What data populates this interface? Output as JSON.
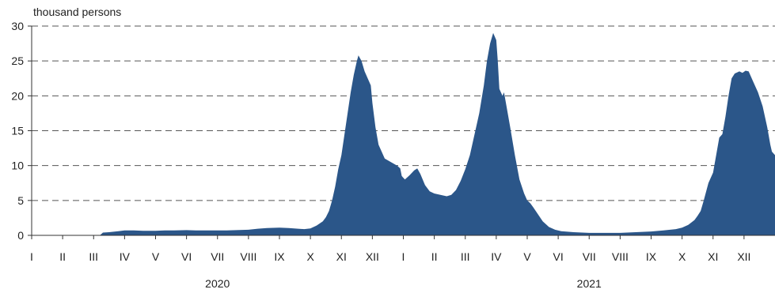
{
  "chart_data": {
    "type": "area",
    "unit_label": "thousand persons",
    "yticks": [
      0,
      5,
      10,
      15,
      20,
      25,
      30
    ],
    "ylim": [
      0,
      30
    ],
    "grid": "horizontal dashed",
    "color": "#2b5689",
    "month_labels": [
      "I",
      "II",
      "III",
      "IV",
      "V",
      "VI",
      "VII",
      "VIII",
      "IX",
      "X",
      "XI",
      "XII",
      "I",
      "II",
      "III",
      "IV",
      "V",
      "VI",
      "VII",
      "VIII",
      "IX",
      "X",
      "XI",
      "XII"
    ],
    "year_labels": [
      "2020",
      "2021"
    ],
    "x_unit": "month index (0 = start of Jan 2020)",
    "series": [
      {
        "values": [
          [
            2.2,
            0
          ],
          [
            2.3,
            0.4
          ],
          [
            2.5,
            0.45
          ],
          [
            2.8,
            0.6
          ],
          [
            3.0,
            0.7
          ],
          [
            3.3,
            0.7
          ],
          [
            3.6,
            0.65
          ],
          [
            4.0,
            0.65
          ],
          [
            4.3,
            0.7
          ],
          [
            4.6,
            0.7
          ],
          [
            5.0,
            0.75
          ],
          [
            5.3,
            0.7
          ],
          [
            5.6,
            0.7
          ],
          [
            6.0,
            0.7
          ],
          [
            6.3,
            0.7
          ],
          [
            6.6,
            0.75
          ],
          [
            7.0,
            0.8
          ],
          [
            7.3,
            0.95
          ],
          [
            7.6,
            1.05
          ],
          [
            8.0,
            1.1
          ],
          [
            8.3,
            1.05
          ],
          [
            8.6,
            0.95
          ],
          [
            8.8,
            0.9
          ],
          [
            9.0,
            1.0
          ],
          [
            9.2,
            1.4
          ],
          [
            9.4,
            2.0
          ],
          [
            9.5,
            2.6
          ],
          [
            9.6,
            3.5
          ],
          [
            9.7,
            5.0
          ],
          [
            9.8,
            7.0
          ],
          [
            9.9,
            9.5
          ],
          [
            10.0,
            11.5
          ],
          [
            10.1,
            14.5
          ],
          [
            10.2,
            17.5
          ],
          [
            10.3,
            20.5
          ],
          [
            10.4,
            23.0
          ],
          [
            10.5,
            25.0
          ],
          [
            10.55,
            25.8
          ],
          [
            10.65,
            25.0
          ],
          [
            10.75,
            23.5
          ],
          [
            10.85,
            22.5
          ],
          [
            10.95,
            21.5
          ],
          [
            11.0,
            19.0
          ],
          [
            11.1,
            15.5
          ],
          [
            11.2,
            13.0
          ],
          [
            11.3,
            12.0
          ],
          [
            11.4,
            11.0
          ],
          [
            11.6,
            10.5
          ],
          [
            11.8,
            10.0
          ],
          [
            11.9,
            9.6
          ],
          [
            11.95,
            8.5
          ],
          [
            12.05,
            8.0
          ],
          [
            12.2,
            8.6
          ],
          [
            12.35,
            9.3
          ],
          [
            12.45,
            9.6
          ],
          [
            12.55,
            8.8
          ],
          [
            12.7,
            7.2
          ],
          [
            12.85,
            6.3
          ],
          [
            13.0,
            6.0
          ],
          [
            13.2,
            5.8
          ],
          [
            13.4,
            5.6
          ],
          [
            13.55,
            5.8
          ],
          [
            13.7,
            6.5
          ],
          [
            13.85,
            7.8
          ],
          [
            14.0,
            9.5
          ],
          [
            14.15,
            11.5
          ],
          [
            14.3,
            14.5
          ],
          [
            14.45,
            17.5
          ],
          [
            14.6,
            21.5
          ],
          [
            14.7,
            25.0
          ],
          [
            14.8,
            27.5
          ],
          [
            14.9,
            29.0
          ],
          [
            15.0,
            28.0
          ],
          [
            15.05,
            25.0
          ],
          [
            15.1,
            21.0
          ],
          [
            15.2,
            20.0
          ],
          [
            15.25,
            20.5
          ],
          [
            15.35,
            18.0
          ],
          [
            15.45,
            15.5
          ],
          [
            15.6,
            11.5
          ],
          [
            15.75,
            8.0
          ],
          [
            15.9,
            6.0
          ],
          [
            16.0,
            5.0
          ],
          [
            16.1,
            4.6
          ],
          [
            16.2,
            4.0
          ],
          [
            16.35,
            3.0
          ],
          [
            16.5,
            2.0
          ],
          [
            16.7,
            1.2
          ],
          [
            16.9,
            0.8
          ],
          [
            17.1,
            0.6
          ],
          [
            17.5,
            0.45
          ],
          [
            18.0,
            0.35
          ],
          [
            18.5,
            0.35
          ],
          [
            19.0,
            0.35
          ],
          [
            19.5,
            0.45
          ],
          [
            20.0,
            0.55
          ],
          [
            20.4,
            0.7
          ],
          [
            20.8,
            0.9
          ],
          [
            21.0,
            1.1
          ],
          [
            21.2,
            1.5
          ],
          [
            21.4,
            2.2
          ],
          [
            21.5,
            2.8
          ],
          [
            21.6,
            3.5
          ],
          [
            21.7,
            5.0
          ],
          [
            21.85,
            7.5
          ],
          [
            22.0,
            9.0
          ],
          [
            22.1,
            11.5
          ],
          [
            22.2,
            14.0
          ],
          [
            22.3,
            14.5
          ],
          [
            22.4,
            17.0
          ],
          [
            22.5,
            20.0
          ],
          [
            22.6,
            22.5
          ],
          [
            22.7,
            23.2
          ],
          [
            22.85,
            23.5
          ],
          [
            22.95,
            23.3
          ],
          [
            23.05,
            23.6
          ],
          [
            23.15,
            23.5
          ],
          [
            23.3,
            22.0
          ],
          [
            23.45,
            20.5
          ],
          [
            23.6,
            18.5
          ],
          [
            23.75,
            15.5
          ],
          [
            23.85,
            13.0
          ],
          [
            23.9,
            12.0
          ],
          [
            24.0,
            11.5
          ]
        ]
      }
    ]
  }
}
